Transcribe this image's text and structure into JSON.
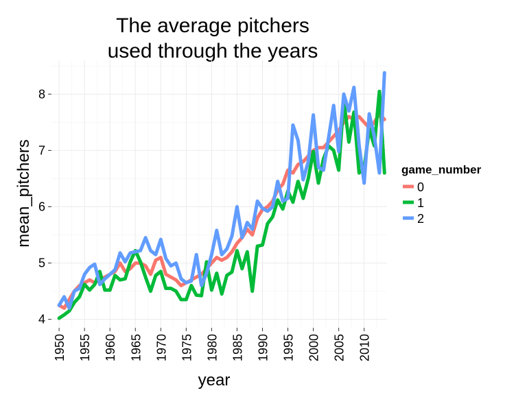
{
  "chart_data": {
    "type": "line",
    "title_lines": [
      "The average pitchers",
      "used through the years"
    ],
    "xlabel": "year",
    "ylabel": "mean_pitchers",
    "xlim": [
      1948.5,
      2014.5
    ],
    "ylim": [
      3.85,
      8.6
    ],
    "xticks": [
      1950,
      1955,
      1960,
      1965,
      1970,
      1975,
      1980,
      1985,
      1990,
      1995,
      2000,
      2005,
      2010
    ],
    "xtick_labels": [
      "1950",
      "1955",
      "1960",
      "1965",
      "1970",
      "1975",
      "1980",
      "1985",
      "1990",
      "1995",
      "2000",
      "2005",
      "2010"
    ],
    "yticks": [
      4,
      5,
      6,
      7,
      8
    ],
    "ytick_labels": [
      "4",
      "5",
      "6",
      "7",
      "8"
    ],
    "grid": true,
    "legend_position": "right",
    "legend_title": "game_number",
    "x": [
      1950,
      1951,
      1952,
      1953,
      1954,
      1955,
      1956,
      1957,
      1958,
      1959,
      1960,
      1961,
      1962,
      1963,
      1964,
      1965,
      1966,
      1967,
      1968,
      1969,
      1970,
      1971,
      1972,
      1973,
      1974,
      1975,
      1976,
      1977,
      1978,
      1979,
      1980,
      1981,
      1982,
      1983,
      1984,
      1985,
      1986,
      1987,
      1988,
      1989,
      1990,
      1991,
      1992,
      1993,
      1994,
      1995,
      1996,
      1997,
      1998,
      1999,
      2000,
      2001,
      2002,
      2003,
      2004,
      2005,
      2006,
      2007,
      2008,
      2009,
      2010,
      2011,
      2012,
      2013,
      2014
    ],
    "series": [
      {
        "name": "0",
        "color": "#f8766d",
        "values": [
          4.25,
          4.2,
          4.35,
          4.5,
          4.6,
          4.65,
          4.7,
          4.65,
          4.7,
          4.75,
          4.8,
          4.85,
          5.0,
          4.85,
          4.9,
          5.0,
          5.0,
          4.95,
          4.8,
          5.05,
          5.1,
          4.8,
          4.75,
          4.7,
          4.6,
          4.65,
          4.7,
          4.75,
          4.8,
          4.9,
          5.0,
          5.1,
          5.05,
          5.1,
          5.2,
          5.35,
          5.45,
          5.6,
          5.5,
          5.8,
          5.95,
          6.0,
          6.1,
          6.3,
          6.4,
          6.65,
          6.6,
          6.75,
          6.8,
          6.9,
          7.0,
          7.05,
          7.05,
          7.15,
          7.25,
          7.35,
          7.5,
          7.6,
          7.55,
          7.6,
          7.5,
          7.4,
          7.5,
          7.65,
          7.55
        ]
      },
      {
        "name": "1",
        "color": "#00ba38",
        "values": [
          4.02,
          4.08,
          4.15,
          4.3,
          4.4,
          4.62,
          4.52,
          4.62,
          4.85,
          4.52,
          4.52,
          4.78,
          4.7,
          4.72,
          5.02,
          5.22,
          5.02,
          4.75,
          4.5,
          4.78,
          4.85,
          4.55,
          4.55,
          4.5,
          4.35,
          4.35,
          4.6,
          4.43,
          4.42,
          5.02,
          4.52,
          4.82,
          4.45,
          4.78,
          4.84,
          5.22,
          4.9,
          5.2,
          4.5,
          5.3,
          5.32,
          5.7,
          5.82,
          6.12,
          5.96,
          6.28,
          6.08,
          6.45,
          6.15,
          6.5,
          6.98,
          6.42,
          6.85,
          7.08,
          7.0,
          6.65,
          7.9,
          7.15,
          7.68,
          6.6,
          6.68,
          7.38,
          7.08,
          8.05,
          6.6
        ]
      },
      {
        "name": "2",
        "color": "#619cff",
        "values": [
          4.25,
          4.4,
          4.2,
          4.5,
          4.55,
          4.8,
          4.92,
          4.98,
          4.62,
          4.72,
          4.8,
          4.88,
          5.18,
          5.02,
          5.18,
          5.2,
          5.22,
          5.45,
          5.22,
          5.15,
          5.42,
          5.08,
          4.95,
          5.0,
          4.72,
          4.65,
          4.68,
          5.15,
          4.6,
          4.82,
          5.15,
          5.58,
          5.15,
          5.25,
          5.48,
          6.0,
          5.45,
          5.72,
          5.6,
          6.1,
          5.97,
          5.92,
          6.0,
          6.45,
          6.1,
          6.15,
          7.45,
          7.18,
          6.48,
          6.8,
          7.63,
          6.7,
          6.65,
          7.22,
          7.8,
          6.98,
          8.0,
          7.7,
          8.12,
          7.1,
          6.42,
          7.65,
          7.25,
          6.6,
          8.38
        ]
      }
    ]
  }
}
